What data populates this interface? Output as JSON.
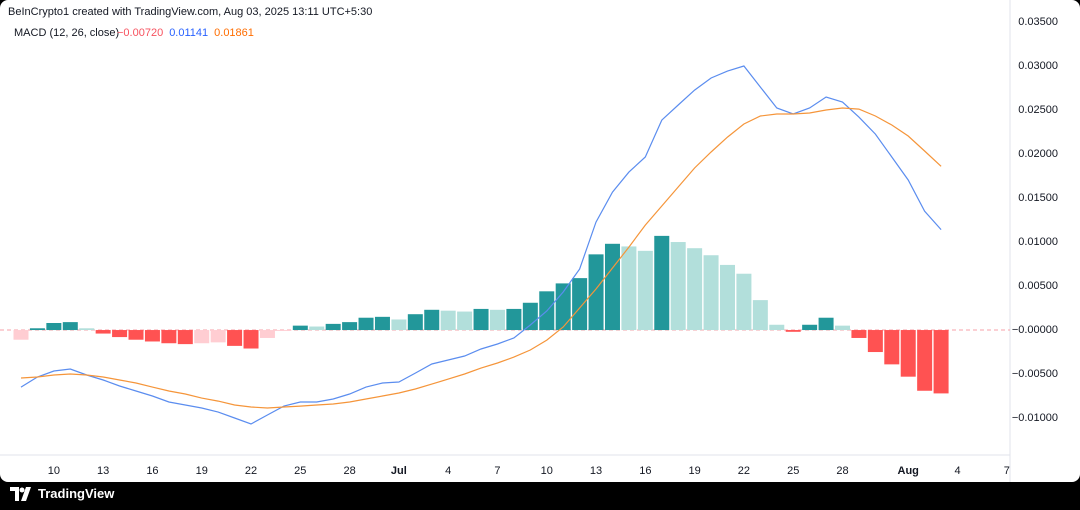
{
  "header": "BeInCrypto1 created with TradingView.com, Aug 03, 2025 13:11 UTC+5:30",
  "footer": "TradingView",
  "chart_data": {
    "type": "macd",
    "indicator": "MACD (12, 26, close)",
    "legend_values": [
      {
        "value": -0.0072,
        "label": "−0.00720",
        "color": "#f7525f"
      },
      {
        "value": 0.01141,
        "label": "0.01141",
        "color": "#2962ff"
      },
      {
        "value": 0.01861,
        "label": "0.01861",
        "color": "#ff6d00"
      }
    ],
    "categories": [
      null,
      null,
      "10",
      null,
      null,
      "13",
      null,
      null,
      "16",
      null,
      null,
      "19",
      null,
      null,
      "22",
      null,
      null,
      "25",
      null,
      null,
      "28",
      null,
      null,
      "Jul",
      null,
      null,
      "4",
      null,
      null,
      "7",
      null,
      null,
      "10",
      null,
      null,
      "13",
      null,
      null,
      "16",
      null,
      null,
      "19",
      null,
      null,
      "22",
      null,
      null,
      "25",
      null,
      null,
      "28",
      null,
      null,
      null,
      "Aug",
      null,
      null,
      "4",
      null,
      null,
      "7"
    ],
    "histogram": {
      "colors": {
        "up_rising": "#22979a",
        "up_falling": "#b2dfdb",
        "down_falling": "#ff5252",
        "down_rising": "#ffcdd2"
      },
      "values": [
        -0.0011,
        0.0002,
        0.0008,
        0.0009,
        0.0002,
        -0.0004,
        -0.0008,
        -0.0011,
        -0.0013,
        -0.0015,
        -0.0016,
        -0.0015,
        -0.0014,
        -0.0018,
        -0.0021,
        -0.0009,
        -0.0001,
        0.0005,
        0.0004,
        0.0007,
        0.0009,
        0.0014,
        0.0015,
        0.0012,
        0.0018,
        0.0023,
        0.0022,
        0.0021,
        0.0024,
        0.0023,
        0.0024,
        0.0031,
        0.0044,
        0.0053,
        0.0059,
        0.0086,
        0.0098,
        0.0095,
        0.009,
        0.0107,
        0.01,
        0.0093,
        0.0085,
        0.0074,
        0.0064,
        0.0034,
        0.0006,
        -0.0002,
        0.0006,
        0.0014,
        0.0005,
        -0.0009,
        -0.0025,
        -0.0039,
        -0.0053,
        -0.0069,
        -0.0072,
        null,
        null,
        null,
        null
      ]
    },
    "series": [
      {
        "name": "MACD",
        "color": "#5b8def",
        "values": [
          -0.00648,
          -0.00534,
          -0.00466,
          -0.00443,
          -0.00511,
          -0.00568,
          -0.00636,
          -0.00693,
          -0.0075,
          -0.00818,
          -0.00852,
          -0.00886,
          -0.00932,
          -0.01,
          -0.01068,
          -0.00966,
          -0.00864,
          -0.00818,
          -0.00818,
          -0.00784,
          -0.00727,
          -0.00648,
          -0.00602,
          -0.00591,
          -0.00489,
          -0.00386,
          -0.00341,
          -0.00295,
          -0.00216,
          -0.00159,
          -0.00091,
          0.00057,
          0.00216,
          0.00432,
          0.00693,
          0.01227,
          0.01568,
          0.01795,
          0.01966,
          0.02386,
          0.02557,
          0.02727,
          0.02864,
          0.02943,
          0.03,
          0.02761,
          0.02523,
          0.02455,
          0.02523,
          0.02648,
          0.02591,
          0.0242,
          0.02227,
          0.01966,
          0.01705,
          0.01352,
          0.01141,
          null,
          null,
          null,
          null
        ]
      },
      {
        "name": "Signal",
        "color": "#f5953a",
        "values": [
          -0.00545,
          -0.00534,
          -0.00511,
          -0.005,
          -0.00511,
          -0.00534,
          -0.00568,
          -0.00602,
          -0.00648,
          -0.00693,
          -0.00727,
          -0.00773,
          -0.00807,
          -0.00852,
          -0.00875,
          -0.00886,
          -0.00875,
          -0.00864,
          -0.00852,
          -0.00841,
          -0.00818,
          -0.00784,
          -0.0075,
          -0.00716,
          -0.0067,
          -0.00614,
          -0.00557,
          -0.005,
          -0.00432,
          -0.00375,
          -0.00307,
          -0.00227,
          -0.00114,
          0.00034,
          0.0025,
          0.00466,
          0.00705,
          0.00943,
          0.01193,
          0.01409,
          0.01625,
          0.01841,
          0.02023,
          0.02193,
          0.02341,
          0.02432,
          0.02455,
          0.02455,
          0.02466,
          0.025,
          0.02523,
          0.02511,
          0.02432,
          0.0233,
          0.02205,
          0.02034,
          0.01861,
          null,
          null,
          null,
          null
        ]
      }
    ],
    "ylim": [
      -0.0142,
      0.0358
    ],
    "yticks": [
      {
        "value": 0.035,
        "label": "0.03500"
      },
      {
        "value": 0.03,
        "label": "0.03000"
      },
      {
        "value": 0.025,
        "label": "0.02500"
      },
      {
        "value": 0.02,
        "label": "0.02000"
      },
      {
        "value": 0.015,
        "label": "0.01500"
      },
      {
        "value": 0.01,
        "label": "0.01000"
      },
      {
        "value": 0.005,
        "label": "0.00500"
      },
      {
        "value": 0,
        "label": "−0.00000"
      },
      {
        "value": -0.005,
        "label": "−0.00500"
      },
      {
        "value": -0.01,
        "label": "−0.01000"
      }
    ],
    "grid": false
  }
}
